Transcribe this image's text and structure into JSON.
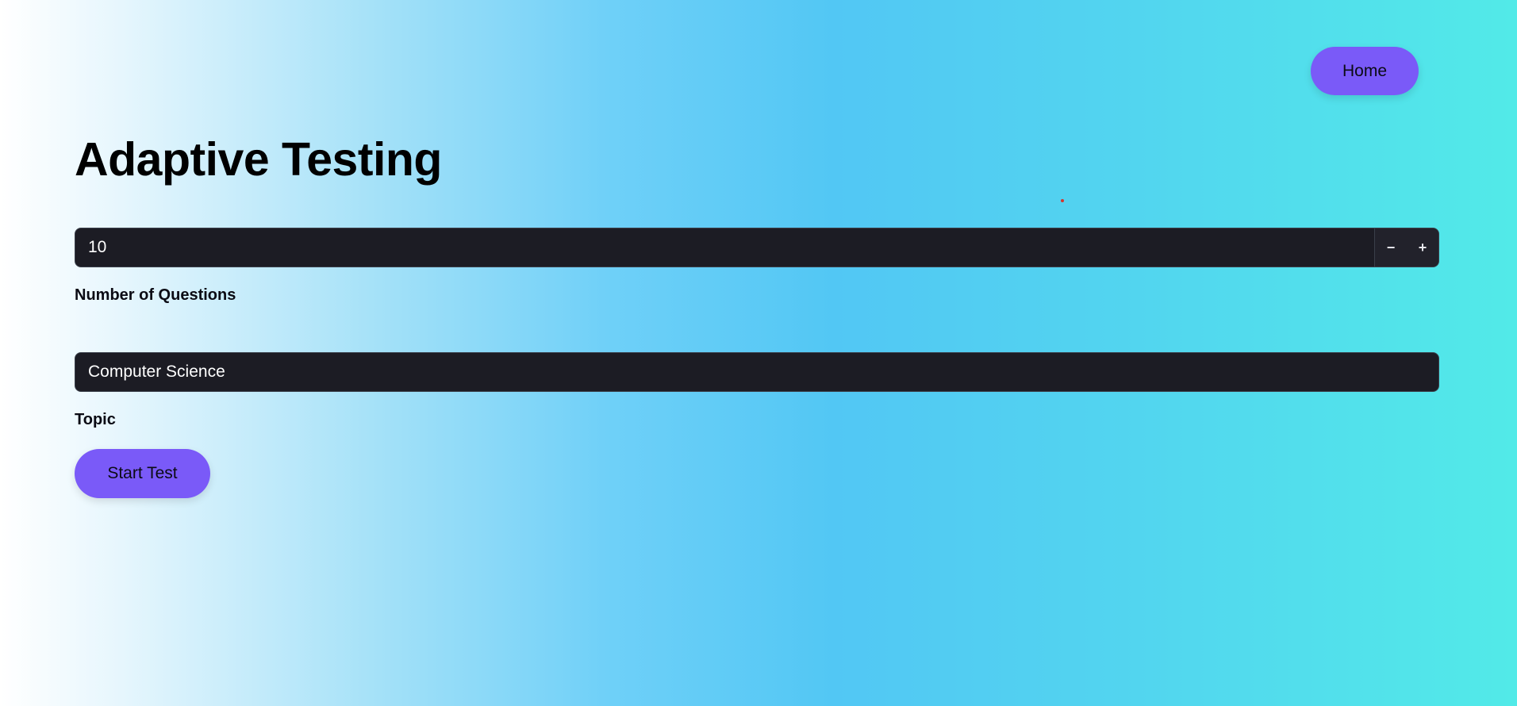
{
  "header": {
    "home_label": "Home"
  },
  "page": {
    "title": "Adaptive Testing"
  },
  "form": {
    "questions": {
      "value": "10",
      "label": "Number of Questions",
      "decrement_symbol": "−",
      "increment_symbol": "+"
    },
    "topic": {
      "value": "Computer Science",
      "label": "Topic"
    },
    "start_label": "Start Test"
  },
  "colors": {
    "accent": "#7a5af8",
    "input_background": "#1c1c24",
    "gradient_start": "#ffffff",
    "gradient_mid": "#52c7f4",
    "gradient_end": "#52eae8"
  }
}
